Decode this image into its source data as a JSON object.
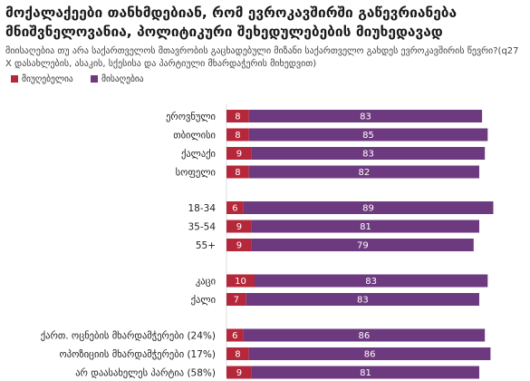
{
  "title": "მოქალაქეები თანხმდებიან, რომ ევროკავშირში გაწევრიანება მნიშვნელოვანია, პოლიტიკური შეხედულებების მიუხედავად",
  "subtitle": "მიისაღებია თუ არა საქართველოს მთავრობის გაცხადებული მიზანი საქართველო გახდეს ევროკავშირის წევრი?(q27 X დასახლების, ასაკის, სქესისა და პარტიული მხარდაჭერის მიხედვით)",
  "colors": {
    "unacceptable": "#b5273a",
    "acceptable": "#6e3a7f",
    "gridline": "#dddddd"
  },
  "chart_data": {
    "type": "bar",
    "orientation": "horizontal",
    "stacked": true,
    "legend_position": "top-left",
    "series": [
      {
        "name": "მიუღებელია",
        "color": "#b5273a",
        "values": [
          8,
          8,
          9,
          8,
          6,
          9,
          9,
          10,
          7,
          6,
          8,
          9
        ]
      },
      {
        "name": "მისაღებია",
        "color": "#6e3a7f",
        "values": [
          83,
          85,
          83,
          82,
          89,
          81,
          79,
          83,
          83,
          86,
          86,
          81
        ]
      }
    ],
    "groups": [
      [
        "ეროვნული",
        "თბილისი",
        "ქალაქი",
        "სოფელი"
      ],
      [
        "18-34",
        "35-54",
        "55+"
      ],
      [
        "კაცი",
        "ქალი"
      ],
      [
        "ქართ. ოცნების მხარდამჭერები (24%)",
        "ოპოზიციის მხარდამჭერები (17%)",
        "არ დაასახელეს პარტია (58%)"
      ]
    ],
    "categories": [
      "ეროვნული",
      "თბილისი",
      "ქალაქი",
      "სოფელი",
      "18-34",
      "35-54",
      "55+",
      "კაცი",
      "ქალი",
      "ქართ. ოცნების მხარდამჭერები (24%)",
      "ოპოზიციის მხარდამჭერები (17%)",
      "არ დაასახელეს პარტია (58%)"
    ],
    "xlim": [
      0,
      100
    ]
  }
}
